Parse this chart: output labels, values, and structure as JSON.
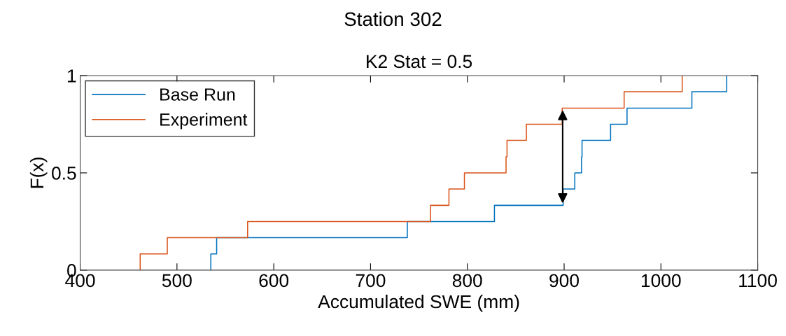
{
  "chart_data": {
    "type": "step",
    "title": "Station 302",
    "subtitle": "K2 Stat = 0.5",
    "xlabel": "Accumulated SWE (mm)",
    "ylabel": "F(x)",
    "series": [
      {
        "name": "Base Run",
        "color": "#0072bd",
        "x": [
          535,
          535,
          541,
          738,
          828,
          899,
          911,
          918,
          918.5,
          948,
          965,
          1032,
          1068
        ],
        "values": [
          0,
          0.083,
          0.167,
          0.25,
          0.333,
          0.417,
          0.5,
          0.583,
          0.667,
          0.75,
          0.833,
          0.917,
          1
        ]
      },
      {
        "name": "Experiment",
        "color": "#d95319",
        "x": [
          462,
          462,
          490,
          573,
          762,
          781,
          797,
          840,
          841,
          861,
          898,
          962,
          1022
        ],
        "values": [
          0,
          0.083,
          0.167,
          0.25,
          0.333,
          0.417,
          0.5,
          0.583,
          0.667,
          0.75,
          0.833,
          0.917,
          1
        ]
      }
    ],
    "xlim": [
      400,
      1100
    ],
    "xticks": [
      400,
      500,
      600,
      700,
      800,
      900,
      1000,
      1100
    ],
    "ylim": [
      0,
      1
    ],
    "yticks": [
      0,
      0.5,
      1
    ],
    "grid": false,
    "legend": "top left",
    "line_style": "solid",
    "marker": "none"
  }
}
